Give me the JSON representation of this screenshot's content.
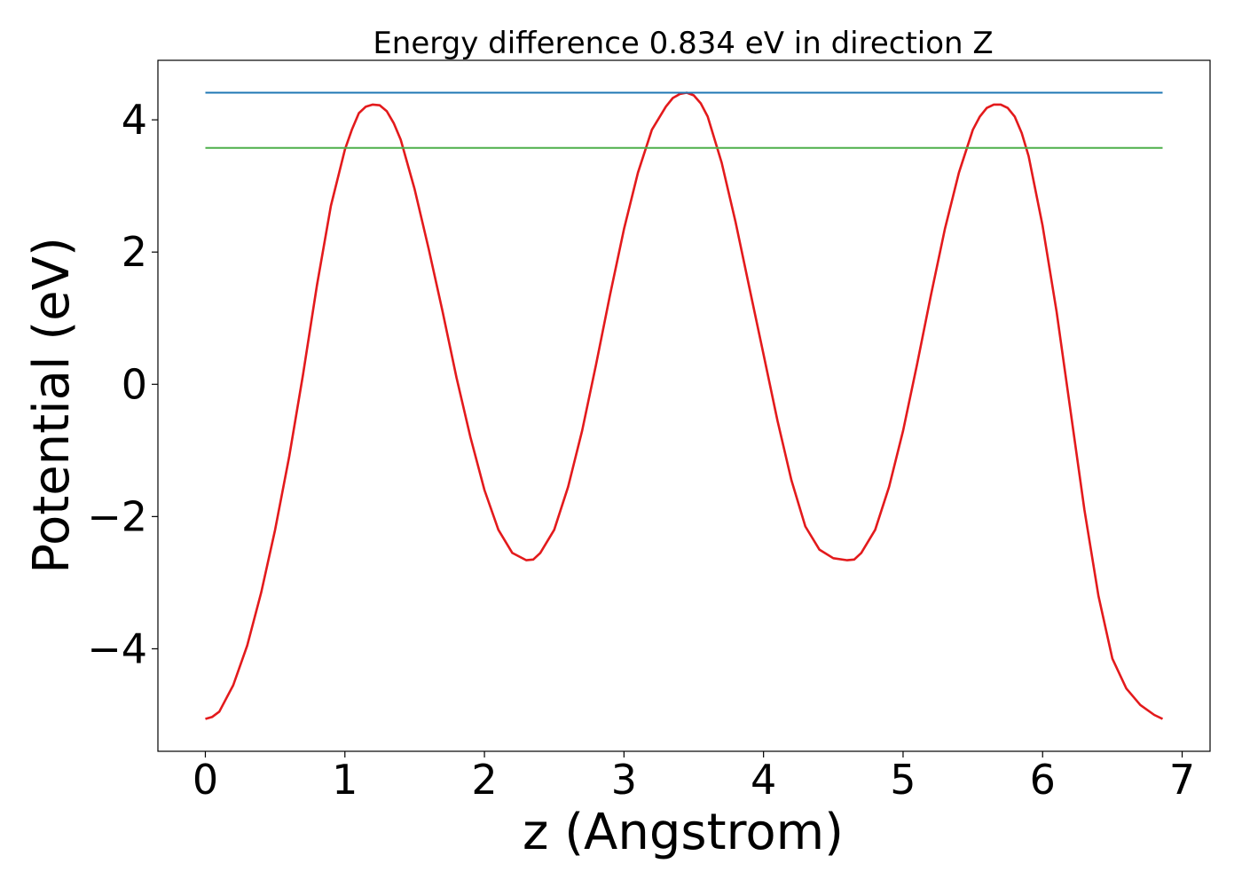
{
  "chart_data": {
    "type": "line",
    "title": "Energy difference 0.834 eV in direction Z",
    "xlabel": "z (Angstrom)",
    "ylabel": "Potential (eV)",
    "xlim": [
      -0.34,
      7.2
    ],
    "ylim": [
      -5.55,
      4.9
    ],
    "x_ticks": [
      0,
      1,
      2,
      3,
      4,
      5,
      6,
      7
    ],
    "x_tick_labels": [
      "0",
      "1",
      "2",
      "3",
      "4",
      "5",
      "6",
      "7"
    ],
    "y_ticks": [
      -4,
      -2,
      0,
      2,
      4
    ],
    "y_tick_labels": [
      "−4",
      "−2",
      "0",
      "2",
      "4"
    ],
    "grid": false,
    "series": [
      {
        "color": "#e31a1c",
        "x": [
          0.0,
          0.05,
          0.1,
          0.2,
          0.3,
          0.4,
          0.5,
          0.6,
          0.7,
          0.8,
          0.9,
          1.0,
          1.05,
          1.1,
          1.15,
          1.2,
          1.25,
          1.3,
          1.35,
          1.4,
          1.5,
          1.6,
          1.7,
          1.8,
          1.9,
          2.0,
          2.1,
          2.2,
          2.3,
          2.35,
          2.4,
          2.5,
          2.6,
          2.7,
          2.8,
          2.9,
          3.0,
          3.1,
          3.2,
          3.3,
          3.35,
          3.4,
          3.45,
          3.5,
          3.55,
          3.6,
          3.7,
          3.8,
          3.9,
          4.0,
          4.1,
          4.2,
          4.3,
          4.4,
          4.5,
          4.6,
          4.65,
          4.7,
          4.8,
          4.9,
          5.0,
          5.1,
          5.2,
          5.3,
          5.4,
          5.5,
          5.55,
          5.6,
          5.65,
          5.7,
          5.75,
          5.8,
          5.85,
          5.9,
          6.0,
          6.1,
          6.2,
          6.3,
          6.4,
          6.5,
          6.6,
          6.7,
          6.8,
          6.86
        ],
        "y": [
          -5.06,
          -5.03,
          -4.95,
          -4.55,
          -3.95,
          -3.15,
          -2.2,
          -1.1,
          0.15,
          1.5,
          2.7,
          3.55,
          3.85,
          4.1,
          4.2,
          4.23,
          4.22,
          4.13,
          3.95,
          3.7,
          2.95,
          2.05,
          1.1,
          0.1,
          -0.8,
          -1.6,
          -2.2,
          -2.55,
          -2.66,
          -2.65,
          -2.55,
          -2.2,
          -1.55,
          -0.7,
          0.3,
          1.35,
          2.35,
          3.2,
          3.85,
          4.2,
          4.33,
          4.39,
          4.41,
          4.37,
          4.25,
          4.05,
          3.35,
          2.45,
          1.45,
          0.45,
          -0.55,
          -1.45,
          -2.15,
          -2.5,
          -2.63,
          -2.66,
          -2.65,
          -2.55,
          -2.2,
          -1.55,
          -0.7,
          0.3,
          1.35,
          2.35,
          3.2,
          3.85,
          4.05,
          4.18,
          4.23,
          4.23,
          4.18,
          4.05,
          3.8,
          3.45,
          2.4,
          1.1,
          -0.4,
          -1.9,
          -3.2,
          -4.15,
          -4.6,
          -4.85,
          -5.0,
          -5.06
        ]
      },
      {
        "color": "#1f77b4",
        "x": [
          0.0,
          6.86
        ],
        "y": [
          4.41,
          4.41
        ]
      },
      {
        "color": "#4daf4a",
        "x": [
          0.0,
          6.86
        ],
        "y": [
          3.576,
          3.576
        ]
      }
    ]
  }
}
